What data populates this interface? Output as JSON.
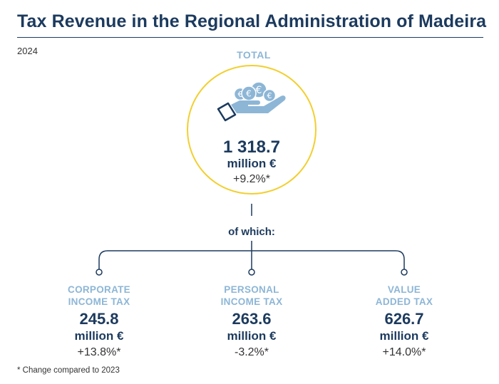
{
  "title": "Tax Revenue in the Regional Administration of Madeira",
  "year": "2024",
  "total": {
    "label": "TOTAL",
    "value": "1 318.7",
    "unit": "million €",
    "change": "+9.2%*"
  },
  "icon": "hand-with-euro-coins-icon",
  "of_which": "of which:",
  "categories": [
    {
      "label_line1": "CORPORATE",
      "label_line2": "INCOME TAX",
      "value": "245.8",
      "unit": "million €",
      "change": "+13.8%*"
    },
    {
      "label_line1": "PERSONAL",
      "label_line2": "INCOME TAX",
      "value": "263.6",
      "unit": "million €",
      "change": "-3.2%*"
    },
    {
      "label_line1": "VALUE",
      "label_line2": "ADDED TAX",
      "value": "626.7",
      "unit": "million €",
      "change": "+14.0%*"
    }
  ],
  "footnote": "* Change compared to 2023",
  "colors": {
    "navy": "#1c3a5e",
    "light_blue": "#8db6d6",
    "yellow": "#f2cf30"
  }
}
